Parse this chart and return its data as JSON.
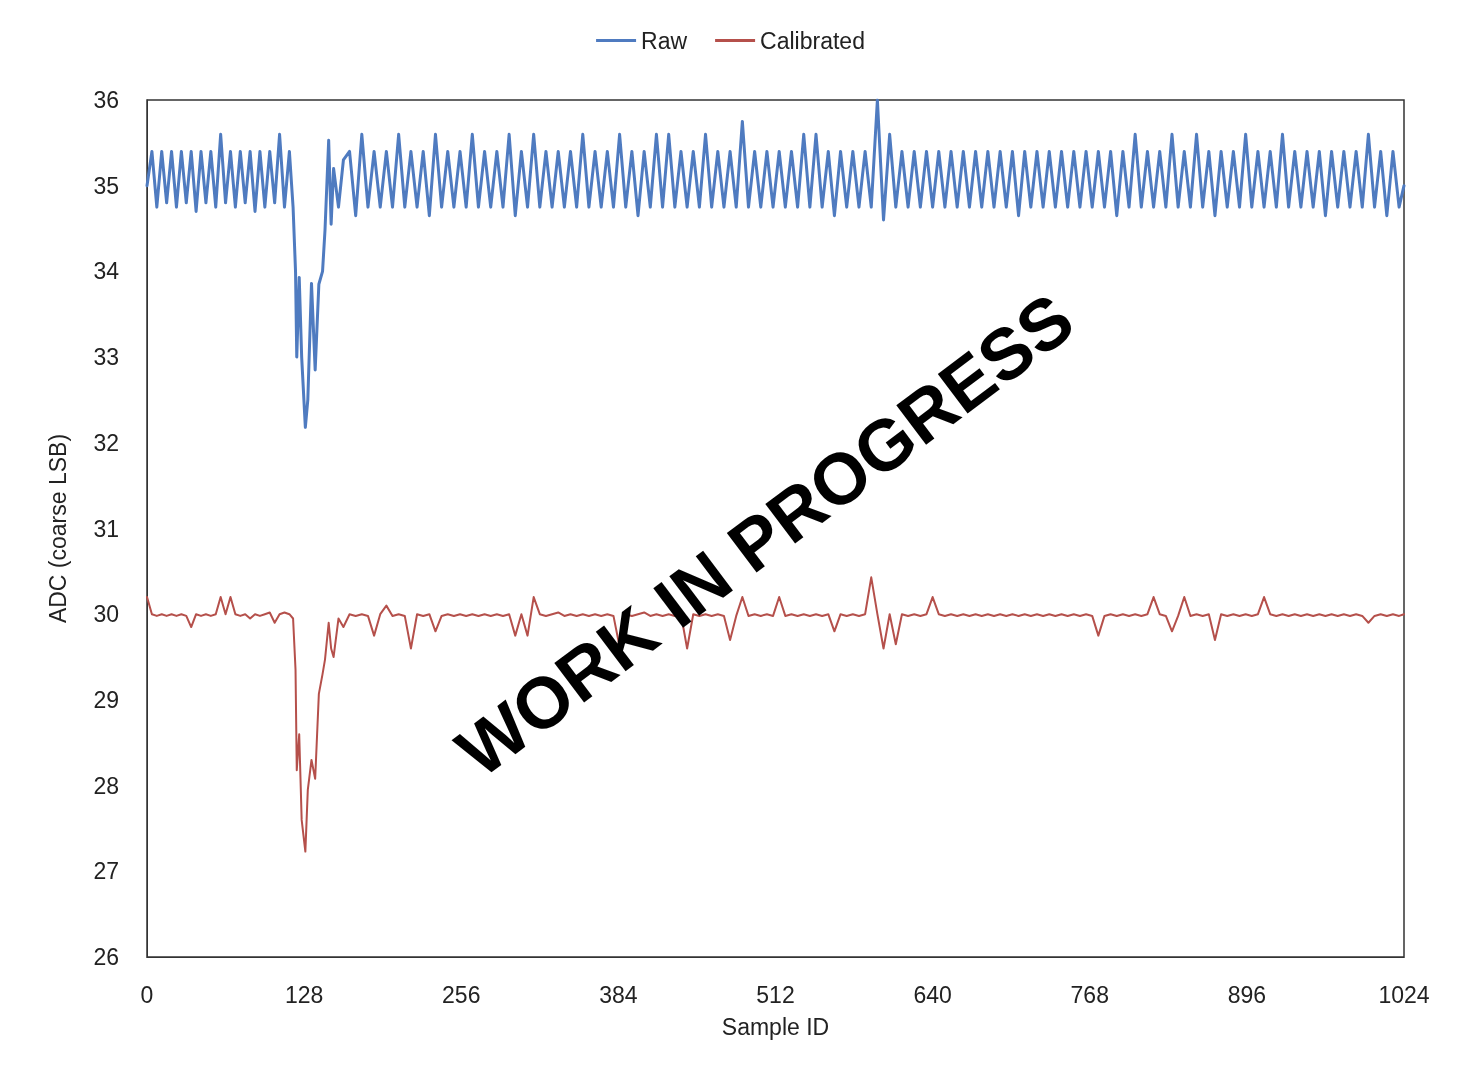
{
  "chart_data": {
    "type": "line",
    "xlabel": "Sample ID",
    "ylabel": "ADC (coarse LSB)",
    "annotations": [
      "WORK IN PROGRESS"
    ],
    "x": [
      0,
      4,
      8,
      12,
      16,
      20,
      24,
      28,
      32,
      36,
      40,
      44,
      48,
      52,
      56,
      60,
      64,
      68,
      72,
      76,
      80,
      84,
      88,
      92,
      96,
      100,
      104,
      108,
      112,
      116,
      119,
      121,
      122,
      124,
      126,
      129,
      131,
      134,
      137,
      140,
      143,
      145,
      148,
      150,
      152,
      156,
      160,
      165,
      170,
      175,
      180,
      185,
      190,
      195,
      200,
      205,
      210,
      215,
      220,
      225,
      230,
      235,
      240,
      245,
      250,
      255,
      260,
      265,
      270,
      275,
      280,
      285,
      290,
      295,
      300,
      305,
      310,
      315,
      320,
      325,
      330,
      335,
      340,
      345,
      350,
      355,
      360,
      365,
      370,
      375,
      380,
      385,
      390,
      395,
      400,
      405,
      410,
      415,
      420,
      425,
      430,
      435,
      440,
      445,
      450,
      455,
      460,
      465,
      470,
      475,
      480,
      485,
      490,
      495,
      500,
      505,
      510,
      515,
      520,
      525,
      530,
      535,
      540,
      545,
      550,
      555,
      560,
      565,
      570,
      575,
      580,
      585,
      590,
      595,
      600,
      605,
      610,
      615,
      620,
      625,
      630,
      635,
      640,
      645,
      650,
      655,
      660,
      665,
      670,
      675,
      680,
      685,
      690,
      695,
      700,
      705,
      710,
      715,
      720,
      725,
      730,
      735,
      740,
      745,
      750,
      755,
      760,
      765,
      770,
      775,
      780,
      785,
      790,
      795,
      800,
      805,
      810,
      815,
      820,
      825,
      830,
      835,
      840,
      845,
      850,
      855,
      860,
      865,
      870,
      875,
      880,
      885,
      890,
      895,
      900,
      905,
      910,
      915,
      920,
      925,
      930,
      935,
      940,
      945,
      950,
      955,
      960,
      965,
      970,
      975,
      980,
      985,
      990,
      995,
      1000,
      1005,
      1010,
      1015,
      1020,
      1024
    ],
    "series": [
      {
        "name": "Raw",
        "color": "#4f7bc0",
        "values": [
          35.0,
          35.4,
          34.75,
          35.4,
          34.8,
          35.4,
          34.75,
          35.4,
          34.8,
          35.4,
          34.7,
          35.4,
          34.8,
          35.4,
          34.75,
          35.6,
          34.8,
          35.4,
          34.75,
          35.4,
          34.8,
          35.4,
          34.7,
          35.4,
          34.75,
          35.4,
          34.8,
          35.6,
          34.75,
          35.4,
          34.75,
          34.0,
          33.0,
          33.93,
          33.0,
          32.18,
          32.5,
          33.86,
          32.85,
          33.85,
          34.0,
          34.48,
          35.53,
          34.55,
          35.2,
          34.75,
          35.3,
          35.4,
          34.65,
          35.6,
          34.75,
          35.4,
          34.75,
          35.4,
          34.75,
          35.6,
          34.75,
          35.4,
          34.75,
          35.4,
          34.65,
          35.6,
          34.75,
          35.4,
          34.75,
          35.4,
          34.75,
          35.6,
          34.75,
          35.4,
          34.75,
          35.4,
          34.75,
          35.6,
          34.65,
          35.4,
          34.75,
          35.6,
          34.75,
          35.4,
          34.75,
          35.4,
          34.75,
          35.4,
          34.75,
          35.6,
          34.75,
          35.4,
          34.75,
          35.4,
          34.75,
          35.6,
          34.75,
          35.4,
          34.65,
          35.4,
          34.75,
          35.6,
          34.75,
          35.6,
          34.75,
          35.4,
          34.75,
          35.4,
          34.75,
          35.6,
          34.75,
          35.4,
          34.75,
          35.4,
          34.75,
          35.75,
          34.75,
          35.4,
          34.75,
          35.4,
          34.75,
          35.4,
          34.75,
          35.4,
          34.75,
          35.6,
          34.75,
          35.6,
          34.75,
          35.4,
          34.65,
          35.4,
          34.75,
          35.4,
          34.75,
          35.4,
          34.75,
          36.0,
          34.6,
          35.6,
          34.75,
          35.4,
          34.75,
          35.4,
          34.75,
          35.4,
          34.75,
          35.4,
          34.75,
          35.4,
          34.75,
          35.4,
          34.75,
          35.4,
          34.75,
          35.4,
          34.75,
          35.4,
          34.75,
          35.4,
          34.65,
          35.4,
          34.75,
          35.4,
          34.75,
          35.4,
          34.75,
          35.4,
          34.75,
          35.4,
          34.75,
          35.4,
          34.75,
          35.4,
          34.75,
          35.4,
          34.65,
          35.4,
          34.75,
          35.6,
          34.75,
          35.4,
          34.75,
          35.4,
          34.75,
          35.6,
          34.75,
          35.4,
          34.75,
          35.6,
          34.75,
          35.4,
          34.65,
          35.4,
          34.75,
          35.4,
          34.75,
          35.6,
          34.75,
          35.4,
          34.75,
          35.4,
          34.75,
          35.6,
          34.75,
          35.4,
          34.75,
          35.4,
          34.75,
          35.4,
          34.65,
          35.4,
          34.75,
          35.4,
          34.75,
          35.4,
          34.75,
          35.6,
          34.75,
          35.4,
          34.65,
          35.4,
          34.75,
          35.0
        ]
      },
      {
        "name": "Calibrated",
        "color": "#b5504b",
        "values": [
          30.2,
          30.0,
          29.98,
          30.0,
          29.98,
          30.0,
          29.98,
          30.0,
          29.98,
          29.85,
          30.0,
          29.98,
          30.0,
          29.98,
          30.0,
          30.2,
          30.0,
          30.2,
          30.0,
          29.98,
          30.0,
          29.95,
          30.0,
          29.98,
          30.0,
          30.02,
          29.9,
          30.0,
          30.02,
          30.0,
          29.95,
          29.35,
          28.18,
          28.6,
          27.6,
          27.23,
          27.95,
          28.3,
          28.08,
          29.07,
          29.3,
          29.47,
          29.9,
          29.6,
          29.5,
          29.95,
          29.85,
          30.0,
          29.98,
          30.0,
          29.98,
          29.75,
          30.0,
          30.1,
          29.98,
          30.0,
          29.98,
          29.6,
          30.0,
          29.98,
          30.0,
          29.8,
          29.98,
          30.0,
          29.98,
          30.0,
          29.98,
          30.0,
          29.98,
          30.0,
          29.98,
          30.0,
          29.98,
          30.0,
          29.75,
          30.0,
          29.75,
          30.2,
          30.0,
          29.98,
          30.0,
          30.02,
          29.98,
          30.0,
          29.98,
          30.0,
          29.98,
          30.0,
          29.98,
          30.0,
          29.98,
          29.62,
          30.0,
          29.98,
          30.0,
          30.02,
          29.98,
          30.0,
          29.98,
          30.0,
          29.98,
          30.0,
          29.6,
          30.0,
          29.98,
          30.0,
          29.98,
          30.0,
          29.98,
          29.7,
          29.98,
          30.2,
          29.98,
          30.0,
          29.98,
          30.0,
          29.98,
          30.2,
          29.98,
          30.0,
          29.98,
          30.0,
          29.98,
          30.0,
          29.98,
          30.0,
          29.8,
          30.0,
          29.98,
          30.0,
          29.98,
          30.0,
          30.43,
          30.0,
          29.6,
          30.0,
          29.65,
          30.0,
          29.98,
          30.0,
          29.98,
          30.0,
          30.2,
          30.0,
          29.98,
          30.0,
          29.98,
          30.0,
          29.98,
          30.0,
          29.98,
          30.0,
          29.98,
          30.0,
          29.98,
          30.0,
          29.98,
          30.0,
          29.98,
          30.0,
          29.98,
          30.0,
          29.98,
          30.0,
          29.98,
          30.0,
          29.98,
          30.0,
          29.98,
          29.75,
          29.98,
          30.0,
          29.98,
          30.0,
          29.98,
          30.0,
          29.98,
          30.0,
          30.2,
          30.0,
          29.98,
          29.8,
          29.98,
          30.2,
          29.98,
          30.0,
          29.98,
          30.0,
          29.7,
          30.0,
          29.98,
          30.0,
          29.98,
          30.0,
          29.98,
          30.0,
          30.2,
          30.0,
          29.98,
          30.0,
          29.98,
          30.0,
          29.98,
          30.0,
          29.98,
          30.0,
          29.98,
          30.0,
          29.98,
          30.0,
          29.98,
          30.0,
          29.98,
          29.9,
          29.98,
          30.0,
          29.98,
          30.0,
          29.98,
          30.0
        ]
      }
    ],
    "xlim": [
      0,
      1024
    ],
    "xticks": [
      0,
      128,
      256,
      384,
      512,
      640,
      768,
      896,
      1024
    ],
    "ylim": [
      26,
      36
    ],
    "yticks": [
      26,
      27,
      28,
      29,
      30,
      31,
      32,
      33,
      34,
      35,
      36
    ],
    "grid": false,
    "legend": "top",
    "marker": "none",
    "line_style": "solid"
  }
}
